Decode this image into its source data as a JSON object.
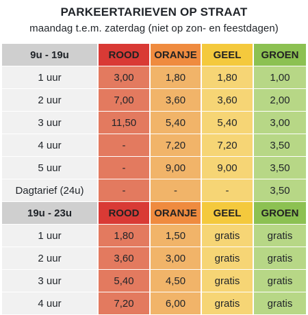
{
  "title": "PARKEERTARIEVEN OP STRAAT",
  "subtitle": "maandag t.e.m. zaterdag (niet op zon- en feestdagen)",
  "colors": {
    "rood": "#d93a35",
    "oranje": "#ef8b3f",
    "geel": "#f4c93d",
    "groen": "#8cc152"
  },
  "sections": [
    {
      "header": [
        "9u - 19u",
        "ROOD",
        "ORANJE",
        "GEEL",
        "GROEN"
      ],
      "rows": [
        [
          "1 uur",
          "3,00",
          "1,80",
          "1,80",
          "1,00"
        ],
        [
          "2 uur",
          "7,00",
          "3,60",
          "3,60",
          "2,00"
        ],
        [
          "3 uur",
          "11,50",
          "5,40",
          "5,40",
          "3,00"
        ],
        [
          "4 uur",
          "-",
          "7,20",
          "7,20",
          "3,50"
        ],
        [
          "5 uur",
          "-",
          "9,00",
          "9,00",
          "3,50"
        ],
        [
          "Dagtarief (24u)",
          "-",
          "-",
          "-",
          "3,50"
        ]
      ]
    },
    {
      "header": [
        "19u - 23u",
        "ROOD",
        "ORANJE",
        "GEEL",
        "GROEN"
      ],
      "rows": [
        [
          "1 uur",
          "1,80",
          "1,50",
          "gratis",
          "gratis"
        ],
        [
          "2 uur",
          "3,60",
          "3,00",
          "gratis",
          "gratis"
        ],
        [
          "3 uur",
          "5,40",
          "4,50",
          "gratis",
          "gratis"
        ],
        [
          "4 uur",
          "7,20",
          "6,00",
          "gratis",
          "gratis"
        ]
      ]
    }
  ]
}
